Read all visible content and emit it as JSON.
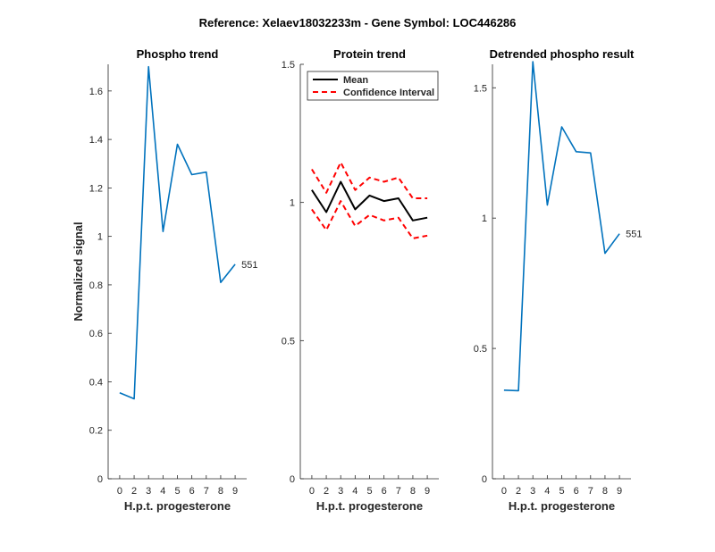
{
  "figure": {
    "title": "Reference:  Xelaev18032233m - Gene Symbol:  LOC446286"
  },
  "colors": {
    "phospho_line": "#0072BD",
    "mean_line": "#000000",
    "ci_line": "#FF0000",
    "axis": "#262626"
  },
  "chart_data": [
    {
      "type": "line",
      "title": "Phospho trend",
      "xlabel": "H.p.t. progesterone",
      "ylabel": "Normalized signal",
      "x_ticks": [
        "0",
        "2",
        "3",
        "4",
        "5",
        "6",
        "7",
        "8",
        "9"
      ],
      "xlim": [
        -0.8,
        8.8
      ],
      "ylim": [
        0,
        1.71
      ],
      "y_ticks": [
        "0",
        "0.2",
        "0.4",
        "0.6",
        "0.8",
        "1",
        "1.2",
        "1.4",
        "1.6"
      ],
      "y_tick_values": [
        0,
        0.2,
        0.4,
        0.6,
        0.8,
        1.0,
        1.2,
        1.4,
        1.6
      ],
      "series": [
        {
          "values": [
            0.355,
            0.33,
            1.7,
            1.02,
            1.38,
            1.255,
            1.265,
            0.81,
            0.885
          ]
        }
      ],
      "annotation": {
        "text": "551",
        "point_index": 8
      }
    },
    {
      "type": "line",
      "title": "Protein trend",
      "xlabel": "H.p.t. progesterone",
      "ylabel": "",
      "x_ticks": [
        "0",
        "2",
        "3",
        "4",
        "5",
        "6",
        "7",
        "8",
        "9"
      ],
      "xlim": [
        -0.8,
        8.8
      ],
      "ylim": [
        0,
        1.5
      ],
      "y_ticks": [
        "0",
        "0.5",
        "1",
        "1.5"
      ],
      "y_tick_values": [
        0,
        0.5,
        1.0,
        1.5
      ],
      "legend": {
        "position": "top-left",
        "entries": [
          "Mean",
          "Confidence Interval"
        ]
      },
      "series": [
        {
          "name": "Mean",
          "values": [
            1.045,
            0.965,
            1.075,
            0.975,
            1.025,
            1.005,
            1.015,
            0.935,
            0.945
          ]
        },
        {
          "name": "Confidence Interval",
          "values": [
            1.12,
            1.035,
            1.145,
            1.045,
            1.09,
            1.075,
            1.09,
            1.015,
            1.015
          ]
        },
        {
          "name": "Confidence Interval",
          "values": [
            0.975,
            0.9,
            1.005,
            0.915,
            0.955,
            0.935,
            0.945,
            0.87,
            0.88
          ]
        }
      ]
    },
    {
      "type": "line",
      "title": "Detrended phospho result",
      "xlabel": "H.p.t. progesterone",
      "ylabel": "",
      "x_ticks": [
        "0",
        "2",
        "3",
        "4",
        "5",
        "6",
        "7",
        "8",
        "9"
      ],
      "xlim": [
        -0.8,
        8.8
      ],
      "ylim": [
        0,
        1.59
      ],
      "y_ticks": [
        "0",
        "0.5",
        "1",
        "1.5"
      ],
      "y_tick_values": [
        0,
        0.5,
        1.0,
        1.5
      ],
      "series": [
        {
          "values": [
            0.34,
            0.338,
            1.6,
            1.05,
            1.35,
            1.255,
            1.25,
            0.865,
            0.94
          ]
        }
      ],
      "annotation": {
        "text": "551",
        "point_index": 8
      }
    }
  ]
}
